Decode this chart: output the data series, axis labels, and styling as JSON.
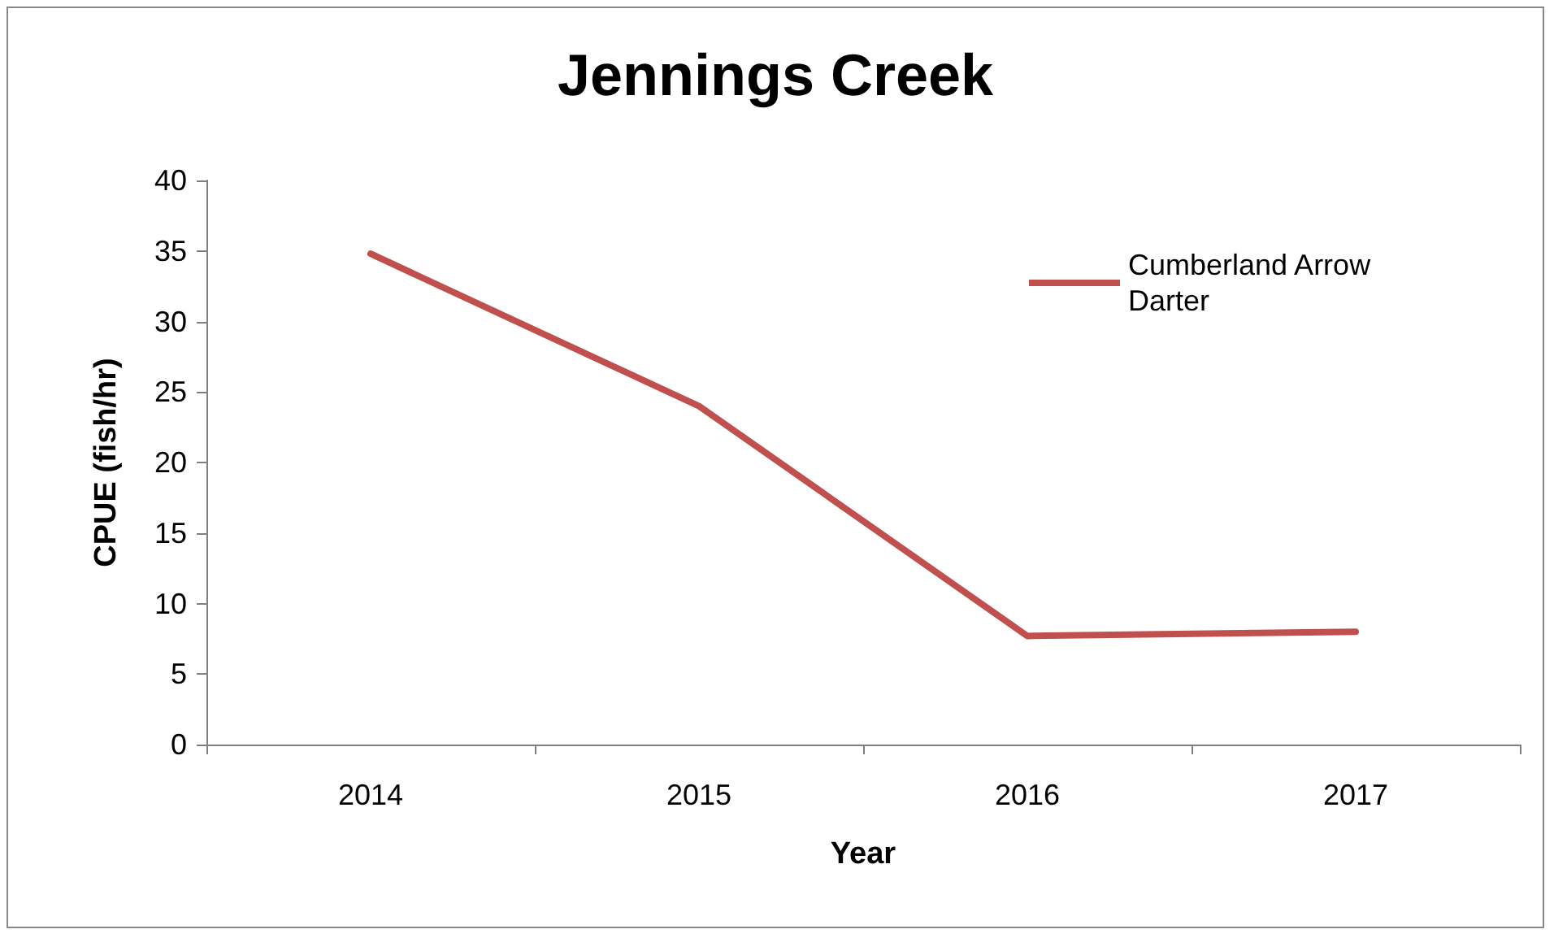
{
  "chart_data": {
    "type": "line",
    "title": "Jennings Creek",
    "xlabel": "Year",
    "ylabel": "CPUE (fish/hr)",
    "categories": [
      "2014",
      "2015",
      "2016",
      "2017"
    ],
    "series": [
      {
        "name": "Cumberland Arrow Darter",
        "color": "#c0504d",
        "values": [
          34.8,
          24.0,
          7.7,
          8.0
        ]
      }
    ],
    "ylim": [
      0,
      40
    ],
    "yticks": [
      0,
      5,
      10,
      15,
      20,
      25,
      30,
      35,
      40
    ],
    "grid": false,
    "legend": "top right",
    "marker": "none",
    "line_style": "solid"
  }
}
